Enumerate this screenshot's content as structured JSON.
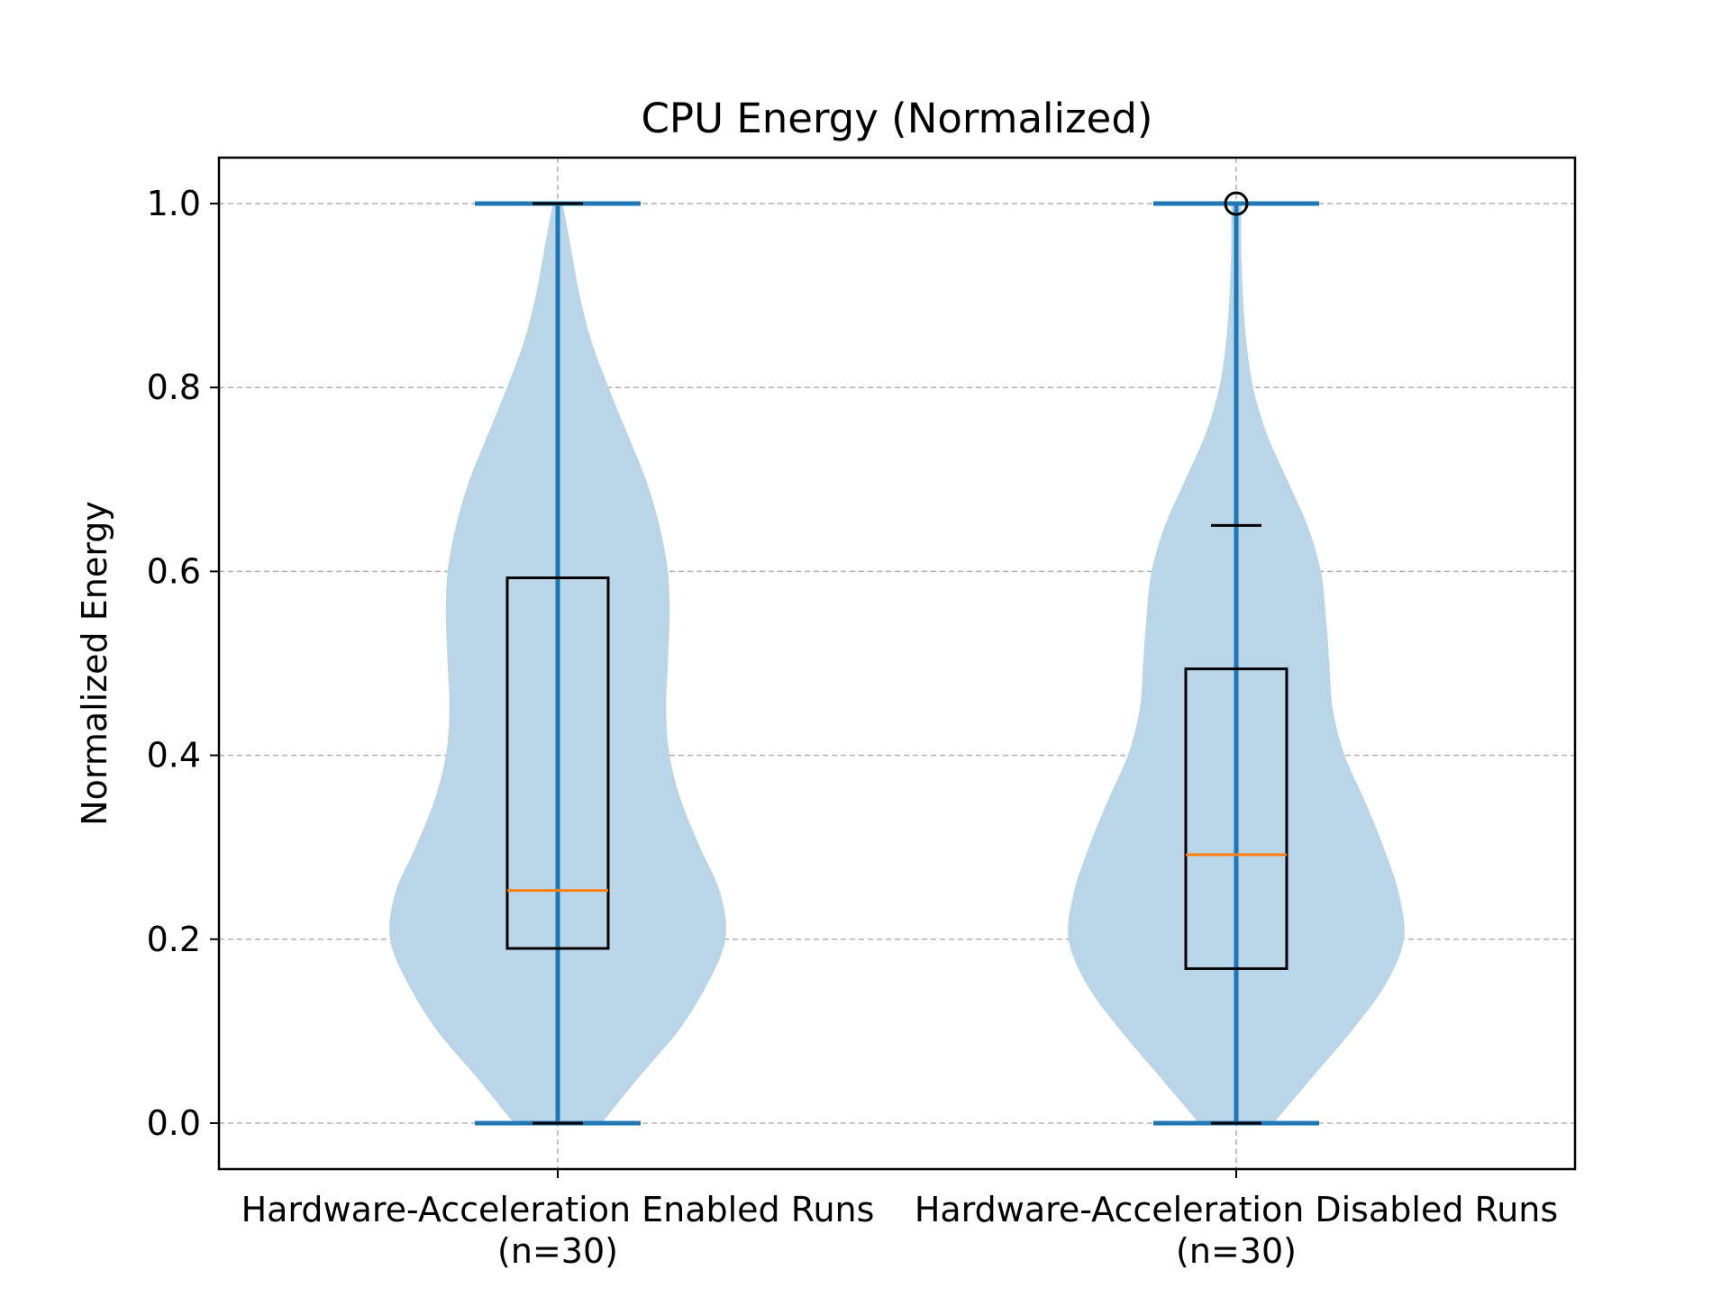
{
  "chart_data": {
    "type": "violin",
    "title": "CPU Energy (Normalized)",
    "xlabel": "",
    "ylabel": "Normalized Energy",
    "ylim": [
      -0.05,
      1.05
    ],
    "yticks": [
      0.0,
      0.2,
      0.4,
      0.6,
      0.8,
      1.0
    ],
    "ytick_labels": [
      "0.0",
      "0.2",
      "0.4",
      "0.6",
      "0.8",
      "1.0"
    ],
    "grid": true,
    "categories": [
      {
        "line1": "Hardware-Acceleration Enabled Runs",
        "line2": "(n=30)"
      },
      {
        "line1": "Hardware-Acceleration Disabled Runs",
        "line2": "(n=30)"
      }
    ],
    "series": [
      {
        "min": 0.0,
        "max": 1.0,
        "box": {
          "q1": 0.19,
          "median": 0.253,
          "q3": 0.593,
          "whisker_low": 0.0,
          "whisker_high": 1.0
        },
        "outliers": [],
        "density": [
          [
            0.0,
            0.26
          ],
          [
            0.05,
            0.48
          ],
          [
            0.1,
            0.71
          ],
          [
            0.15,
            0.88
          ],
          [
            0.2,
            0.99
          ],
          [
            0.25,
            0.96
          ],
          [
            0.3,
            0.84
          ],
          [
            0.35,
            0.73
          ],
          [
            0.4,
            0.66
          ],
          [
            0.45,
            0.64
          ],
          [
            0.5,
            0.65
          ],
          [
            0.55,
            0.66
          ],
          [
            0.6,
            0.65
          ],
          [
            0.65,
            0.6
          ],
          [
            0.7,
            0.52
          ],
          [
            0.75,
            0.41
          ],
          [
            0.8,
            0.3
          ],
          [
            0.85,
            0.2
          ],
          [
            0.9,
            0.13
          ],
          [
            0.95,
            0.08
          ],
          [
            1.0,
            0.03
          ]
        ]
      },
      {
        "min": 0.0,
        "max": 1.0,
        "box": {
          "q1": 0.168,
          "median": 0.292,
          "q3": 0.494,
          "whisker_low": 0.0,
          "whisker_high": 0.65
        },
        "outliers": [
          1.0
        ],
        "density": [
          [
            0.0,
            0.22
          ],
          [
            0.05,
            0.45
          ],
          [
            0.1,
            0.68
          ],
          [
            0.15,
            0.88
          ],
          [
            0.2,
            0.99
          ],
          [
            0.25,
            0.96
          ],
          [
            0.3,
            0.87
          ],
          [
            0.35,
            0.76
          ],
          [
            0.4,
            0.64
          ],
          [
            0.45,
            0.57
          ],
          [
            0.5,
            0.55
          ],
          [
            0.55,
            0.53
          ],
          [
            0.6,
            0.5
          ],
          [
            0.65,
            0.42
          ],
          [
            0.7,
            0.3
          ],
          [
            0.75,
            0.18
          ],
          [
            0.8,
            0.1
          ],
          [
            0.85,
            0.06
          ],
          [
            0.9,
            0.04
          ],
          [
            0.95,
            0.03
          ],
          [
            1.0,
            0.03
          ]
        ]
      }
    ],
    "colors": {
      "violin_fill": "#bad5e8",
      "violin_lines": "#1f77b4",
      "box": "#000000",
      "median": "#ff7f0e",
      "grid": "#b0b0b0"
    }
  }
}
